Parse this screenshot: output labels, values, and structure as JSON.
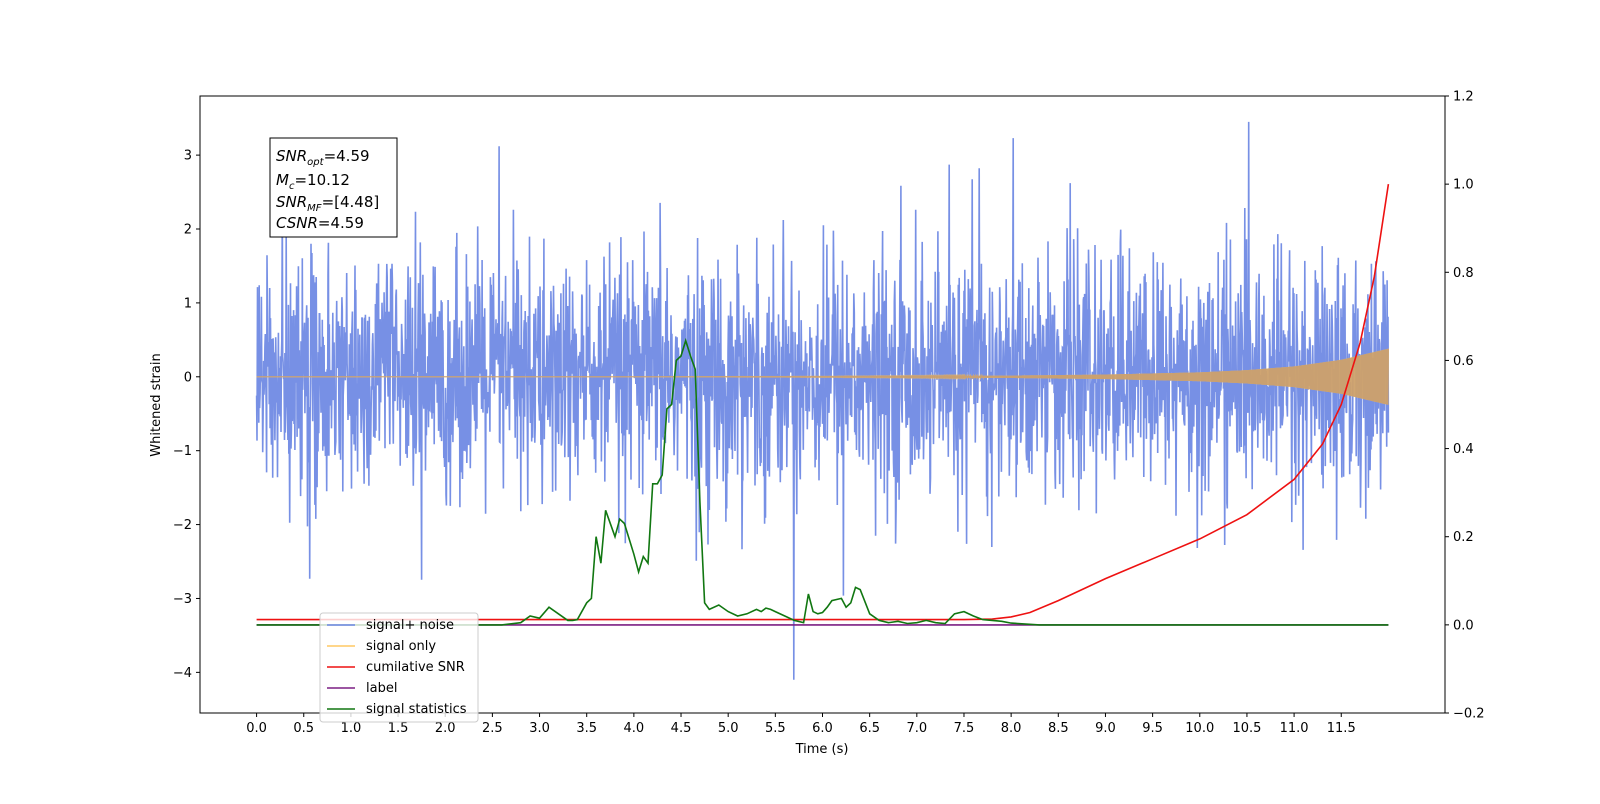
{
  "chart_data": {
    "type": "line",
    "xlabel": "Time (s)",
    "ylabel": "Whitened strain",
    "xlim": [
      -0.6,
      12.6
    ],
    "ylim": [
      -4.55,
      3.8
    ],
    "y2lim": [
      -0.2,
      1.2
    ],
    "x_ticks": [
      0.0,
      0.5,
      1.0,
      1.5,
      2.0,
      2.5,
      3.0,
      3.5,
      4.0,
      4.5,
      5.0,
      5.5,
      6.0,
      6.5,
      7.0,
      7.5,
      8.0,
      8.5,
      9.0,
      9.5,
      10.0,
      10.5,
      11.0,
      11.5
    ],
    "x_tick_labels": [
      "0.0",
      "0.5",
      "1.0",
      "1.5",
      "2.0",
      "2.5",
      "3.0",
      "3.5",
      "4.0",
      "4.5",
      "5.0",
      "5.5",
      "6.0",
      "6.5",
      "7.0",
      "7.5",
      "8.0",
      "8.5",
      "9.0",
      "9.5",
      "10.0",
      "10.5",
      "11.0",
      "11.5"
    ],
    "y_ticks": [
      3,
      2,
      1,
      0,
      -1,
      -2,
      -3,
      -4
    ],
    "y_tick_labels": [
      "3",
      "2",
      "1",
      "0",
      "−1",
      "−2",
      "−3",
      "−4"
    ],
    "y2_ticks": [
      1.2,
      1.0,
      0.8,
      0.6,
      0.4,
      0.2,
      0.0,
      -0.2
    ],
    "y2_tick_labels": [
      "1.2",
      "1.0",
      "0.8",
      "0.6",
      "0.4",
      "0.2",
      "0.0",
      "−0.2"
    ],
    "grid": false,
    "legend_position": "lower-left",
    "series": [
      {
        "name": "signal+ noise",
        "color": "#6b87e3",
        "axis": "left",
        "x_range": [
          0,
          12
        ],
        "amplitude_std": 0.75,
        "peak_range": [
          -4.1,
          3.45
        ]
      },
      {
        "name": "signal only",
        "color": "#ffc864",
        "axis": "left",
        "x_range": [
          0,
          12
        ],
        "envelope": {
          "x": [
            0,
            4,
            6,
            7,
            8,
            9,
            10,
            10.5,
            11,
            11.5,
            12
          ],
          "y": [
            0.0,
            0.0,
            0.004,
            0.008,
            0.015,
            0.03,
            0.06,
            0.09,
            0.14,
            0.23,
            0.38
          ]
        }
      },
      {
        "name": "cumilative SNR",
        "color": "#ee1111",
        "axis": "right",
        "x": [
          0,
          7.5,
          7.8,
          8.0,
          8.2,
          8.5,
          9.0,
          9.5,
          10.0,
          10.5,
          11.0,
          11.3,
          11.5,
          11.7,
          11.85,
          12.0
        ],
        "y": [
          0.012,
          0.012,
          0.013,
          0.018,
          0.028,
          0.055,
          0.105,
          0.15,
          0.195,
          0.25,
          0.33,
          0.41,
          0.5,
          0.64,
          0.79,
          1.0
        ]
      },
      {
        "name": "label",
        "color": "#7b1f83",
        "axis": "right",
        "x": [
          0,
          12
        ],
        "y": [
          0.0,
          0.0
        ]
      },
      {
        "name": "signal statistics",
        "color": "#117711",
        "axis": "right",
        "x": [
          0,
          2.6,
          2.8,
          2.9,
          3.0,
          3.1,
          3.2,
          3.3,
          3.35,
          3.4,
          3.5,
          3.55,
          3.6,
          3.65,
          3.7,
          3.8,
          3.85,
          3.9,
          4.0,
          4.05,
          4.1,
          4.15,
          4.2,
          4.25,
          4.3,
          4.35,
          4.4,
          4.45,
          4.5,
          4.55,
          4.6,
          4.65,
          4.7,
          4.75,
          4.8,
          4.9,
          5.0,
          5.1,
          5.2,
          5.3,
          5.35,
          5.4,
          5.45,
          5.5,
          5.6,
          5.7,
          5.8,
          5.85,
          5.9,
          5.95,
          6.0,
          6.05,
          6.1,
          6.2,
          6.25,
          6.3,
          6.35,
          6.4,
          6.5,
          6.6,
          6.7,
          6.8,
          6.9,
          7.0,
          7.1,
          7.2,
          7.3,
          7.4,
          7.5,
          7.6,
          7.7,
          7.8,
          7.9,
          8.0,
          8.3,
          8.5,
          12.0
        ],
        "y": [
          0,
          0,
          0.005,
          0.02,
          0.015,
          0.04,
          0.025,
          0.01,
          0.01,
          0.012,
          0.05,
          0.06,
          0.2,
          0.14,
          0.26,
          0.2,
          0.24,
          0.23,
          0.16,
          0.12,
          0.155,
          0.14,
          0.32,
          0.32,
          0.34,
          0.49,
          0.5,
          0.6,
          0.61,
          0.645,
          0.61,
          0.58,
          0.28,
          0.05,
          0.035,
          0.045,
          0.03,
          0.02,
          0.025,
          0.035,
          0.03,
          0.038,
          0.035,
          0.03,
          0.02,
          0.01,
          0.005,
          0.07,
          0.03,
          0.025,
          0.028,
          0.04,
          0.055,
          0.06,
          0.04,
          0.05,
          0.085,
          0.08,
          0.025,
          0.01,
          0.005,
          0.008,
          0.003,
          0.005,
          0.01,
          0.005,
          0.003,
          0.025,
          0.03,
          0.02,
          0.012,
          0.01,
          0.008,
          0.004,
          0,
          0,
          0
        ]
      }
    ],
    "annotation": {
      "lines": [
        {
          "main": "SNR",
          "sub": "opt",
          "rest": "=4.59"
        },
        {
          "main": "M",
          "sub": "c",
          "rest": "=10.12"
        },
        {
          "main": "SNR",
          "sub": "MF",
          "rest": "=[4.48]"
        },
        {
          "main": "CSNR",
          "sub": "",
          "rest": "=4.59"
        }
      ]
    },
    "legend": {
      "entries": [
        "signal+ noise",
        "signal only",
        "cumilative SNR",
        "label",
        "signal statistics"
      ]
    }
  }
}
